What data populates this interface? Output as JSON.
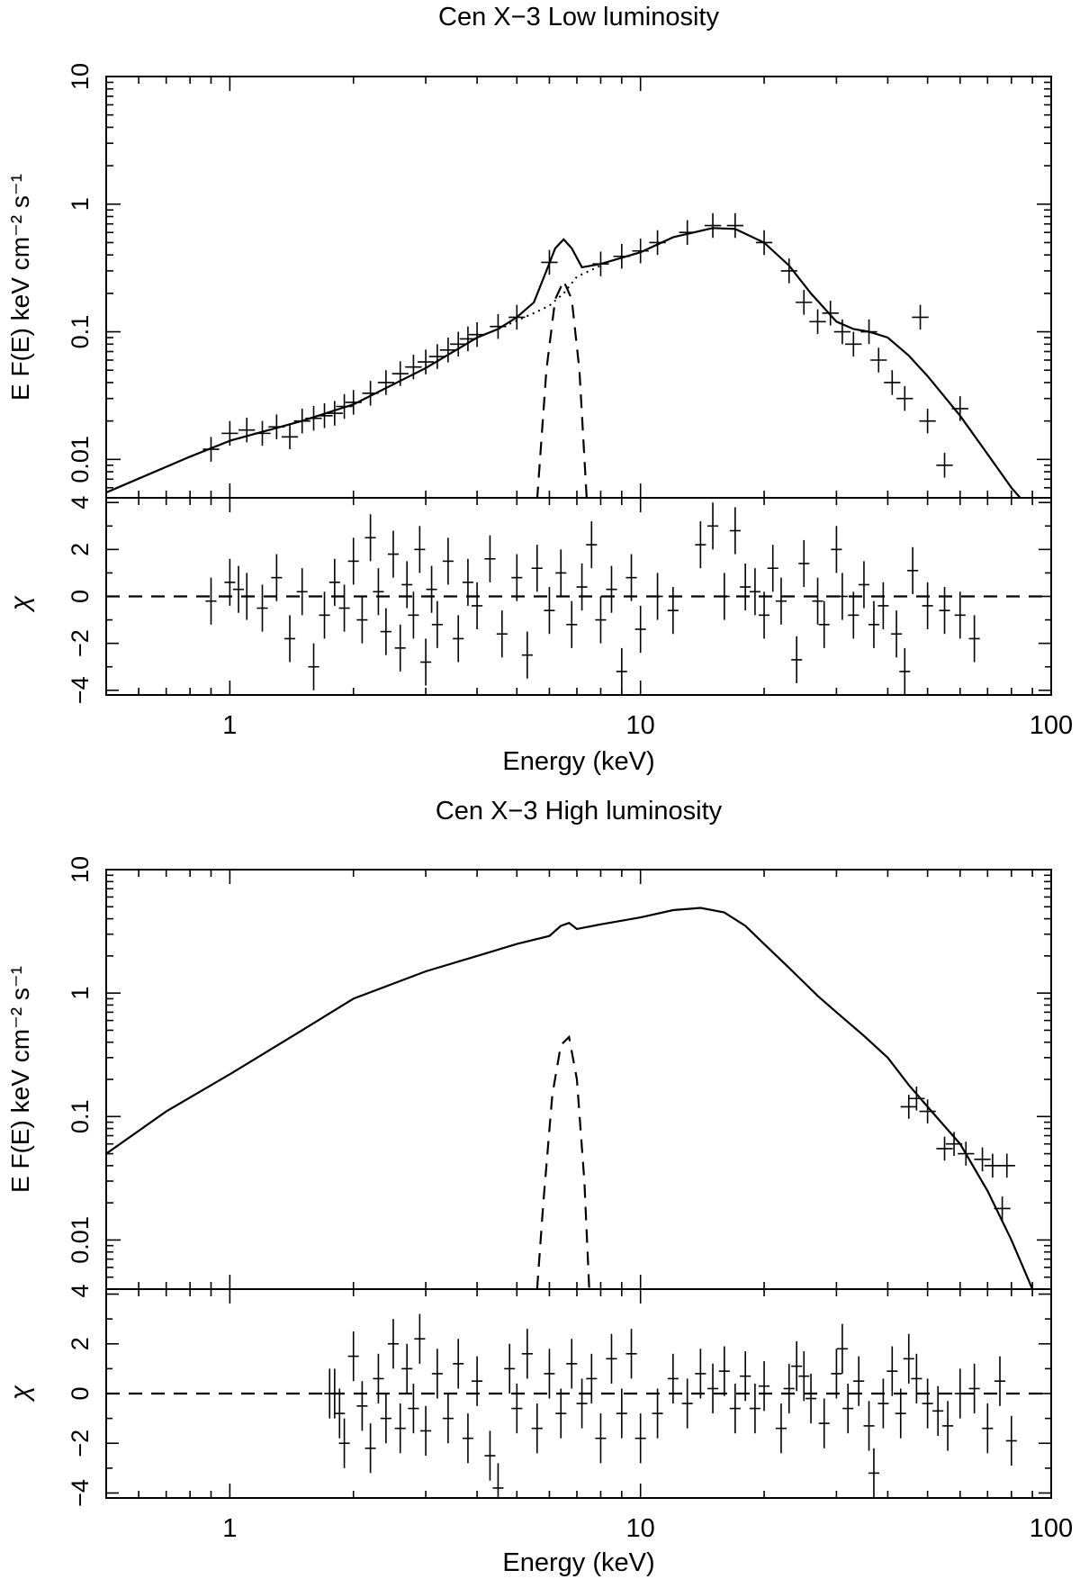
{
  "chart_data": [
    {
      "type": "line",
      "title": "Cen X−3 Low luminosity",
      "xlabel": "Energy (keV)",
      "ylabel": "E F(E) keV  cm⁻² s⁻¹",
      "resid_ylabel": "χ",
      "x_scale": "log",
      "y_scale": "log",
      "xlim": [
        0.5,
        100
      ],
      "ylim": [
        0.005,
        10
      ],
      "resid_ylim": [
        -4.2,
        4.2
      ],
      "x_ticks": [
        "1",
        "10",
        "100"
      ],
      "x_tick_values": [
        1,
        10,
        100
      ],
      "y_ticks": [
        "0.01",
        "0.1",
        "1",
        "10"
      ],
      "y_tick_values": [
        0.01,
        0.1,
        1,
        10
      ],
      "resid_ticks": [
        "−4",
        "−2",
        "0",
        "2",
        "4"
      ],
      "resid_tick_values": [
        -4,
        -2,
        0,
        2,
        4
      ],
      "model_total": [
        [
          0.5,
          0.0055
        ],
        [
          0.8,
          0.0105
        ],
        [
          1.0,
          0.014
        ],
        [
          1.5,
          0.02
        ],
        [
          2.0,
          0.027
        ],
        [
          3.0,
          0.052
        ],
        [
          4.0,
          0.09
        ],
        [
          4.5,
          0.105
        ],
        [
          5.0,
          0.13
        ],
        [
          5.5,
          0.17
        ],
        [
          5.9,
          0.3
        ],
        [
          6.2,
          0.45
        ],
        [
          6.5,
          0.53
        ],
        [
          6.8,
          0.45
        ],
        [
          7.2,
          0.32
        ],
        [
          8.0,
          0.34
        ],
        [
          10.0,
          0.42
        ],
        [
          12.0,
          0.55
        ],
        [
          15.0,
          0.65
        ],
        [
          17.0,
          0.64
        ],
        [
          20.0,
          0.5
        ],
        [
          23.0,
          0.33
        ],
        [
          26.0,
          0.2
        ],
        [
          30.0,
          0.12
        ],
        [
          33.0,
          0.105
        ],
        [
          36.0,
          0.1
        ],
        [
          40.0,
          0.09
        ],
        [
          45.0,
          0.065
        ],
        [
          50.0,
          0.045
        ],
        [
          60.0,
          0.022
        ],
        [
          70.0,
          0.011
        ],
        [
          80.0,
          0.006
        ],
        [
          85.0,
          0.0048
        ]
      ],
      "model_continuum": [
        [
          4.5,
          0.105
        ],
        [
          5.5,
          0.14
        ],
        [
          6.0,
          0.16
        ],
        [
          6.5,
          0.2
        ],
        [
          7.0,
          0.27
        ],
        [
          8.0,
          0.33
        ]
      ],
      "gaussian_line": [
        [
          5.6,
          0.0048
        ],
        [
          5.9,
          0.05
        ],
        [
          6.2,
          0.18
        ],
        [
          6.5,
          0.25
        ],
        [
          6.8,
          0.18
        ],
        [
          7.1,
          0.05
        ],
        [
          7.4,
          0.0048
        ]
      ],
      "data": [
        [
          0.9,
          0.012
        ],
        [
          1.0,
          0.016
        ],
        [
          1.1,
          0.017
        ],
        [
          1.2,
          0.016
        ],
        [
          1.3,
          0.018
        ],
        [
          1.4,
          0.015
        ],
        [
          1.5,
          0.02
        ],
        [
          1.6,
          0.021
        ],
        [
          1.7,
          0.022
        ],
        [
          1.8,
          0.023
        ],
        [
          1.9,
          0.026
        ],
        [
          2.0,
          0.028
        ],
        [
          2.2,
          0.033
        ],
        [
          2.4,
          0.04
        ],
        [
          2.6,
          0.047
        ],
        [
          2.8,
          0.053
        ],
        [
          3.0,
          0.058
        ],
        [
          3.2,
          0.064
        ],
        [
          3.4,
          0.072
        ],
        [
          3.6,
          0.08
        ],
        [
          3.8,
          0.088
        ],
        [
          4.0,
          0.095
        ],
        [
          4.5,
          0.11
        ],
        [
          5.0,
          0.13
        ],
        [
          6.0,
          0.35
        ],
        [
          8.0,
          0.34
        ],
        [
          9.0,
          0.39
        ],
        [
          10.0,
          0.43
        ],
        [
          11.0,
          0.5
        ],
        [
          13.0,
          0.6
        ],
        [
          15.0,
          0.68
        ],
        [
          17.0,
          0.68
        ],
        [
          20.0,
          0.5
        ],
        [
          23.0,
          0.3
        ],
        [
          25.0,
          0.17
        ],
        [
          27.0,
          0.12
        ],
        [
          29.0,
          0.14
        ],
        [
          31.0,
          0.1
        ],
        [
          33.0,
          0.08
        ],
        [
          36.0,
          0.1
        ],
        [
          38.0,
          0.06
        ],
        [
          41.0,
          0.04
        ],
        [
          44.0,
          0.03
        ],
        [
          48.0,
          0.13
        ],
        [
          50.0,
          0.02
        ],
        [
          55.0,
          0.009
        ],
        [
          60.0,
          0.025
        ]
      ],
      "residuals": [
        [
          0.9,
          -0.2
        ],
        [
          1.0,
          0.6
        ],
        [
          1.05,
          0.3
        ],
        [
          1.1,
          0.0
        ],
        [
          1.2,
          -0.5
        ],
        [
          1.3,
          0.8
        ],
        [
          1.4,
          -1.8
        ],
        [
          1.5,
          0.2
        ],
        [
          1.6,
          -3.0
        ],
        [
          1.7,
          -0.8
        ],
        [
          1.8,
          0.6
        ],
        [
          1.9,
          -0.5
        ],
        [
          2.0,
          1.5
        ],
        [
          2.1,
          -1.0
        ],
        [
          2.2,
          2.5
        ],
        [
          2.3,
          0.2
        ],
        [
          2.4,
          -1.5
        ],
        [
          2.5,
          1.8
        ],
        [
          2.6,
          -2.2
        ],
        [
          2.7,
          0.5
        ],
        [
          2.8,
          -0.8
        ],
        [
          2.9,
          2.0
        ],
        [
          3.0,
          -2.8
        ],
        [
          3.1,
          0.3
        ],
        [
          3.2,
          -1.2
        ],
        [
          3.4,
          1.5
        ],
        [
          3.6,
          -1.8
        ],
        [
          3.8,
          0.6
        ],
        [
          4.0,
          -0.4
        ],
        [
          4.3,
          1.6
        ],
        [
          4.6,
          -1.6
        ],
        [
          5.0,
          0.8
        ],
        [
          5.3,
          -2.5
        ],
        [
          5.6,
          1.2
        ],
        [
          6.0,
          -0.6
        ],
        [
          6.4,
          1.0
        ],
        [
          6.8,
          -1.2
        ],
        [
          7.2,
          0.4
        ],
        [
          7.6,
          2.2
        ],
        [
          8.0,
          -1.0
        ],
        [
          8.5,
          0.3
        ],
        [
          9.0,
          -3.2
        ],
        [
          9.5,
          0.8
        ],
        [
          10.0,
          -1.4
        ],
        [
          11.0,
          0.0
        ],
        [
          12.0,
          -0.6
        ],
        [
          14.0,
          2.2
        ],
        [
          15.0,
          3.0
        ],
        [
          16.0,
          0.0
        ],
        [
          17.0,
          2.8
        ],
        [
          18.0,
          0.4
        ],
        [
          19.0,
          0.2
        ],
        [
          20.0,
          -0.8
        ],
        [
          21.0,
          1.2
        ],
        [
          22.0,
          -0.2
        ],
        [
          24.0,
          -2.7
        ],
        [
          25.0,
          1.4
        ],
        [
          27.0,
          -0.2
        ],
        [
          28.0,
          -1.2
        ],
        [
          30.0,
          2.0
        ],
        [
          31.0,
          0.0
        ],
        [
          33.0,
          -0.8
        ],
        [
          35.0,
          0.5
        ],
        [
          37.0,
          -1.2
        ],
        [
          39.0,
          -0.4
        ],
        [
          42.0,
          -1.6
        ],
        [
          44.0,
          -3.2
        ],
        [
          46.0,
          1.1
        ],
        [
          50.0,
          -0.4
        ],
        [
          55.0,
          -0.6
        ],
        [
          60.0,
          -0.8
        ],
        [
          65.0,
          -1.8
        ]
      ]
    },
    {
      "type": "line",
      "title": "Cen X−3 High luminosity",
      "xlabel": "Energy (keV)",
      "ylabel": "E F(E) keV  cm⁻² s⁻¹",
      "resid_ylabel": "χ",
      "x_scale": "log",
      "y_scale": "log",
      "xlim": [
        0.5,
        100
      ],
      "ylim": [
        0.004,
        10
      ],
      "resid_ylim": [
        -4.2,
        4.2
      ],
      "x_ticks": [
        "1",
        "10",
        "100"
      ],
      "x_tick_values": [
        1,
        10,
        100
      ],
      "y_ticks": [
        "0.01",
        "0.1",
        "1",
        "10"
      ],
      "y_tick_values": [
        0.01,
        0.1,
        1,
        10
      ],
      "corner_label": "4",
      "resid_ticks": [
        "−4",
        "−2",
        "0",
        "2"
      ],
      "resid_tick_values": [
        -4,
        -2,
        0,
        2
      ],
      "model_total": [
        [
          0.5,
          0.05
        ],
        [
          0.7,
          0.11
        ],
        [
          1.0,
          0.22
        ],
        [
          1.5,
          0.5
        ],
        [
          2.0,
          0.9
        ],
        [
          3.0,
          1.5
        ],
        [
          4.0,
          2.0
        ],
        [
          5.0,
          2.5
        ],
        [
          6.0,
          2.9
        ],
        [
          6.4,
          3.5
        ],
        [
          6.7,
          3.7
        ],
        [
          7.0,
          3.3
        ],
        [
          8.0,
          3.6
        ],
        [
          10.0,
          4.1
        ],
        [
          12.0,
          4.7
        ],
        [
          14.0,
          4.9
        ],
        [
          16.0,
          4.5
        ],
        [
          18.0,
          3.5
        ],
        [
          20.0,
          2.5
        ],
        [
          23.0,
          1.6
        ],
        [
          27.0,
          0.95
        ],
        [
          30.0,
          0.7
        ],
        [
          35.0,
          0.45
        ],
        [
          40.0,
          0.3
        ],
        [
          45.0,
          0.18
        ],
        [
          50.0,
          0.12
        ],
        [
          60.0,
          0.06
        ],
        [
          70.0,
          0.025
        ],
        [
          80.0,
          0.01
        ],
        [
          90.0,
          0.004
        ]
      ],
      "gaussian_line": [
        [
          5.6,
          0.004
        ],
        [
          5.8,
          0.02
        ],
        [
          6.1,
          0.15
        ],
        [
          6.4,
          0.38
        ],
        [
          6.7,
          0.44
        ],
        [
          7.0,
          0.2
        ],
        [
          7.3,
          0.03
        ],
        [
          7.5,
          0.004
        ]
      ],
      "data": [
        [
          45.0,
          0.12
        ],
        [
          47.0,
          0.14
        ],
        [
          50.0,
          0.11
        ],
        [
          55.0,
          0.055
        ],
        [
          58.0,
          0.06
        ],
        [
          62.0,
          0.05
        ],
        [
          68.0,
          0.045
        ],
        [
          72.0,
          0.04
        ],
        [
          76.0,
          0.018
        ],
        [
          78.0,
          0.04
        ]
      ],
      "residuals": [
        [
          1.75,
          0.0
        ],
        [
          1.8,
          0.0
        ],
        [
          1.85,
          -0.8
        ],
        [
          1.9,
          -2.0
        ],
        [
          2.0,
          1.5
        ],
        [
          2.1,
          -0.5
        ],
        [
          2.2,
          -2.2
        ],
        [
          2.3,
          0.6
        ],
        [
          2.4,
          -1.0
        ],
        [
          2.5,
          2.0
        ],
        [
          2.6,
          -1.4
        ],
        [
          2.7,
          1.0
        ],
        [
          2.8,
          -0.6
        ],
        [
          2.9,
          2.2
        ],
        [
          3.0,
          -1.5
        ],
        [
          3.2,
          0.8
        ],
        [
          3.4,
          -1.0
        ],
        [
          3.6,
          1.2
        ],
        [
          3.8,
          -1.8
        ],
        [
          4.0,
          0.5
        ],
        [
          4.3,
          -2.5
        ],
        [
          4.5,
          -3.8
        ],
        [
          4.8,
          1.0
        ],
        [
          5.0,
          -0.6
        ],
        [
          5.3,
          1.6
        ],
        [
          5.6,
          -1.4
        ],
        [
          6.0,
          0.8
        ],
        [
          6.4,
          -0.8
        ],
        [
          6.8,
          1.2
        ],
        [
          7.2,
          -0.4
        ],
        [
          7.6,
          0.6
        ],
        [
          8.0,
          -1.8
        ],
        [
          8.5,
          1.4
        ],
        [
          9.0,
          -0.8
        ],
        [
          9.5,
          1.6
        ],
        [
          10.0,
          -1.8
        ],
        [
          11.0,
          -0.8
        ],
        [
          12.0,
          0.6
        ],
        [
          13.0,
          -0.4
        ],
        [
          14.0,
          0.8
        ],
        [
          15.0,
          0.2
        ],
        [
          16.0,
          0.9
        ],
        [
          17.0,
          -0.6
        ],
        [
          18.0,
          0.7
        ],
        [
          19.0,
          -0.6
        ],
        [
          20.0,
          0.3
        ],
        [
          22.0,
          -1.4
        ],
        [
          23.0,
          0.2
        ],
        [
          24.0,
          1.1
        ],
        [
          25.0,
          0.7
        ],
        [
          26.0,
          -0.2
        ],
        [
          28.0,
          -1.2
        ],
        [
          30.0,
          0.8
        ],
        [
          31.0,
          1.8
        ],
        [
          32.0,
          -0.6
        ],
        [
          34.0,
          0.5
        ],
        [
          36.0,
          -1.3
        ],
        [
          37.0,
          -3.2
        ],
        [
          39.0,
          -0.4
        ],
        [
          41.0,
          0.9
        ],
        [
          43.0,
          -0.8
        ],
        [
          45.0,
          1.4
        ],
        [
          47.0,
          0.6
        ],
        [
          50.0,
          -0.4
        ],
        [
          53.0,
          -0.7
        ],
        [
          56.0,
          -1.3
        ],
        [
          60.0,
          0.0
        ],
        [
          65.0,
          0.2
        ],
        [
          70.0,
          -1.4
        ],
        [
          75.0,
          0.5
        ],
        [
          80.0,
          -1.9
        ]
      ]
    }
  ]
}
